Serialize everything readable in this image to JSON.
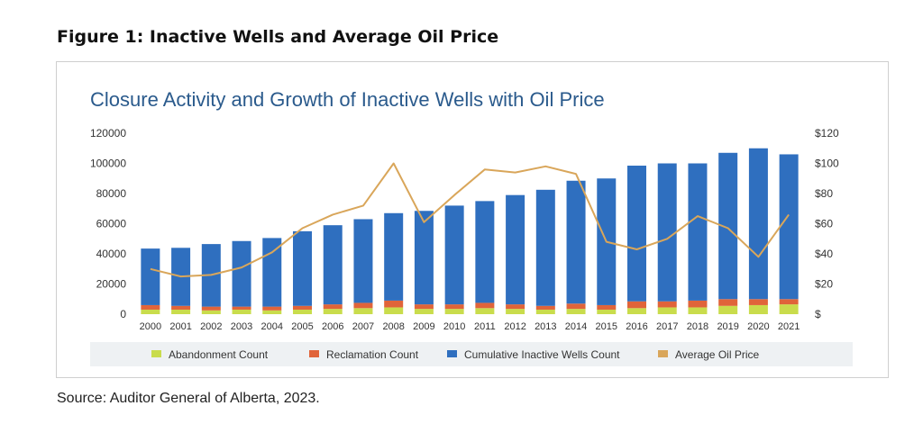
{
  "figure_title": "Figure 1:  Inactive Wells and Average Oil Price",
  "source_note": "Source: Auditor General of Alberta, 2023.",
  "colors": {
    "abandonment": "#c9dc4c",
    "reclamation": "#e0643a",
    "inactive": "#2f6fbf",
    "oil_price": "#d9a65a",
    "title": "#2a5a8c"
  },
  "chart_data": {
    "type": "bar",
    "title": "Closure Activity and Growth of Inactive Wells with Oil Price",
    "categories": [
      "2000",
      "2001",
      "2002",
      "2003",
      "2004",
      "2005",
      "2006",
      "2007",
      "2008",
      "2009",
      "2010",
      "2011",
      "2012",
      "2013",
      "2014",
      "2015",
      "2016",
      "2017",
      "2018",
      "2019",
      "2020",
      "2021"
    ],
    "ylim": [
      0,
      120000
    ],
    "y2lim": [
      0,
      120
    ],
    "y_ticks": [
      "0",
      "20000",
      "40000",
      "60000",
      "80000",
      "100000",
      "120000"
    ],
    "y2_ticks": [
      "$",
      "$20",
      "$40",
      "$60",
      "$80",
      "$100",
      "$120"
    ],
    "legend_position": "bottom",
    "series": [
      {
        "name": "Abandonment Count",
        "type": "bar",
        "stack": true,
        "axis": "left",
        "values": [
          3000,
          3000,
          2500,
          3000,
          2500,
          3000,
          3500,
          4000,
          4500,
          3500,
          3500,
          4000,
          3500,
          3000,
          3500,
          3000,
          4000,
          4500,
          4500,
          5500,
          6000,
          6500
        ]
      },
      {
        "name": "Reclamation Count",
        "type": "bar",
        "stack": true,
        "axis": "left",
        "values": [
          3000,
          2500,
          2500,
          2000,
          2500,
          2500,
          3000,
          3500,
          4500,
          3000,
          3000,
          3500,
          3000,
          2500,
          3500,
          3000,
          4500,
          4000,
          4500,
          4500,
          4000,
          3500
        ]
      },
      {
        "name": "Cumulative Inactive Wells Count",
        "type": "bar",
        "stack": true,
        "axis": "left",
        "values": [
          37500,
          38500,
          41500,
          43500,
          45500,
          49500,
          52500,
          55500,
          58000,
          62000,
          65500,
          67500,
          72500,
          77000,
          81500,
          84000,
          90000,
          91500,
          91000,
          97000,
          100000,
          96000
        ]
      },
      {
        "name": "Average Oil Price",
        "type": "line",
        "axis": "right",
        "values": [
          30,
          25,
          26,
          31,
          41,
          57,
          66,
          72,
          100,
          61,
          79,
          96,
          94,
          98,
          93,
          48,
          43,
          50,
          65,
          57,
          38,
          66
        ]
      }
    ]
  }
}
